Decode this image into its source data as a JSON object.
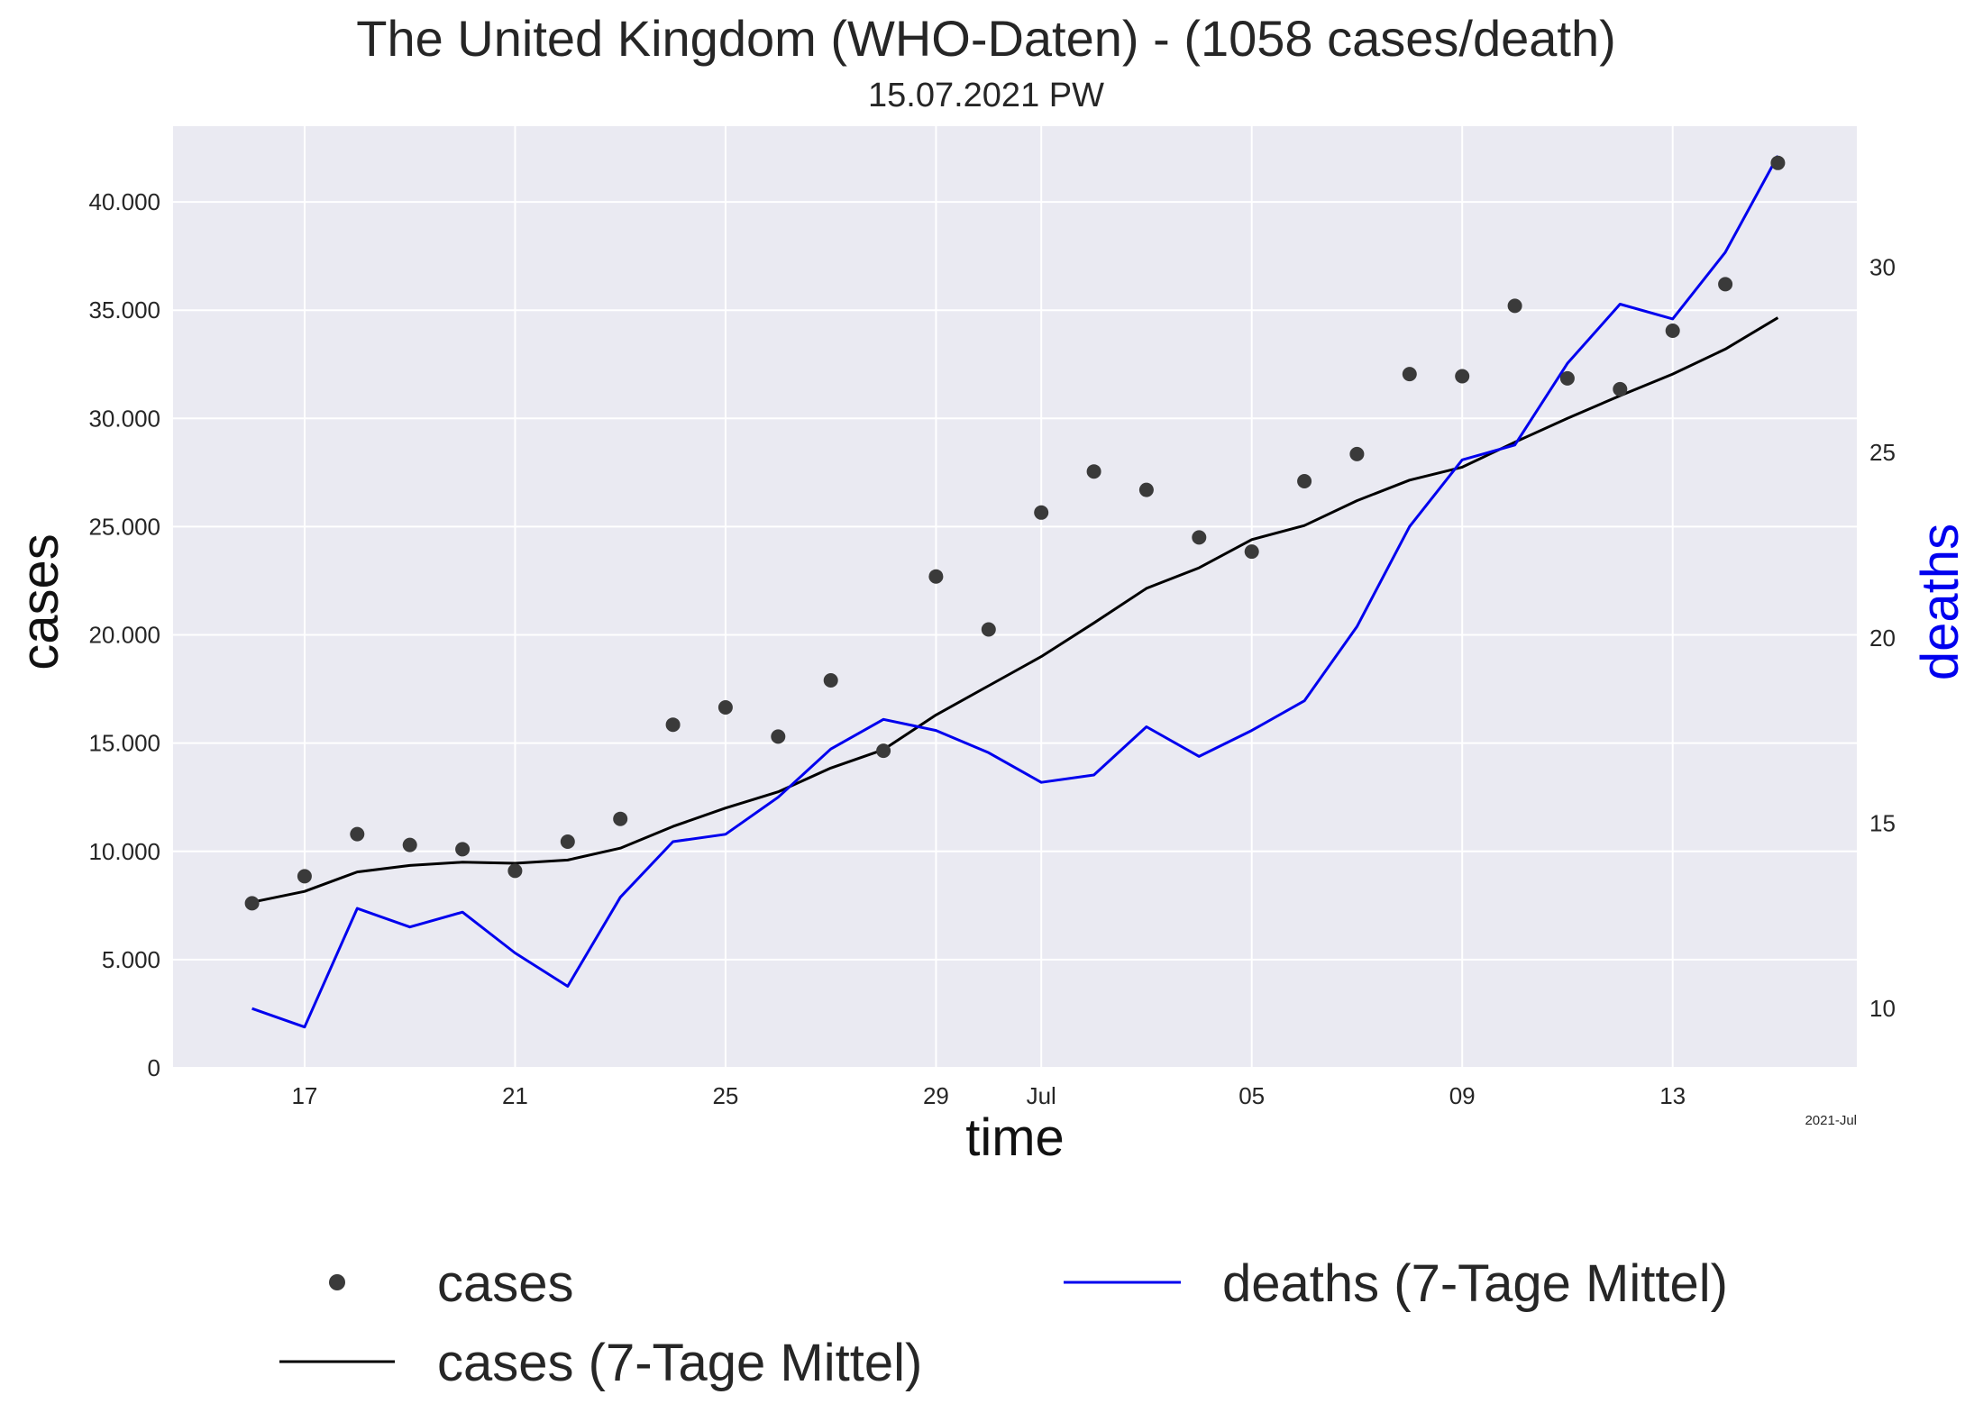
{
  "chart_data": {
    "type": "line",
    "title": "The United Kingdom (WHO-Daten) - (1058 cases/death)",
    "subtitle": "15.07.2021 PW",
    "xlabel": "time",
    "ylabel": "cases",
    "y2label": "deaths",
    "x_offset_label": "2021-Jul",
    "x": [
      "2021-06-16",
      "2021-06-17",
      "2021-06-18",
      "2021-06-19",
      "2021-06-20",
      "2021-06-21",
      "2021-06-22",
      "2021-06-23",
      "2021-06-24",
      "2021-06-25",
      "2021-06-26",
      "2021-06-27",
      "2021-06-28",
      "2021-06-29",
      "2021-06-30",
      "2021-07-01",
      "2021-07-02",
      "2021-07-03",
      "2021-07-04",
      "2021-07-05",
      "2021-07-06",
      "2021-07-07",
      "2021-07-08",
      "2021-07-09",
      "2021-07-10",
      "2021-07-11",
      "2021-07-12",
      "2021-07-13",
      "2021-07-14",
      "2021-07-15"
    ],
    "xlim": [
      "2021-06-14T12:00",
      "2021-07-16T12:00"
    ],
    "x_ticks": [
      {
        "date": "2021-06-17",
        "label": "17"
      },
      {
        "date": "2021-06-21",
        "label": "21"
      },
      {
        "date": "2021-06-25",
        "label": "25"
      },
      {
        "date": "2021-06-29",
        "label": "29"
      },
      {
        "date": "2021-07-01",
        "label": "Jul"
      },
      {
        "date": "2021-07-05",
        "label": "05"
      },
      {
        "date": "2021-07-09",
        "label": "09"
      },
      {
        "date": "2021-07-13",
        "label": "13"
      }
    ],
    "ylim": [
      0,
      43500
    ],
    "y_ticks": [
      {
        "value": 0,
        "label": "0"
      },
      {
        "value": 5000,
        "label": "5.000"
      },
      {
        "value": 10000,
        "label": "10.000"
      },
      {
        "value": 15000,
        "label": "15.000"
      },
      {
        "value": 20000,
        "label": "20.000"
      },
      {
        "value": 25000,
        "label": "25.000"
      },
      {
        "value": 30000,
        "label": "30.000"
      },
      {
        "value": 35000,
        "label": "35.000"
      },
      {
        "value": 40000,
        "label": "40.000"
      }
    ],
    "y2lim": [
      8.4,
      33.8
    ],
    "y2_ticks": [
      {
        "value": 10,
        "label": "10"
      },
      {
        "value": 15,
        "label": "15"
      },
      {
        "value": 20,
        "label": "20"
      },
      {
        "value": 25,
        "label": "25"
      },
      {
        "value": 30,
        "label": "30"
      }
    ],
    "grid": true,
    "legend_placement": "bottom",
    "colors": {
      "background": "#eaeaf2",
      "grid": "#ffffff",
      "cases_points": "#3a3a3a",
      "cases_avg": "#000000",
      "deaths_avg": "#0000ee",
      "y2_label": "#0000ee"
    },
    "series": [
      {
        "name": "cases",
        "kind": "scatter",
        "axis": "left",
        "values": [
          7600,
          8850,
          10800,
          10300,
          10100,
          9100,
          10450,
          11500,
          15850,
          16650,
          15300,
          17900,
          14650,
          22700,
          20250,
          25650,
          27550,
          26700,
          24500,
          23850,
          27100,
          28350,
          32050,
          31950,
          35200,
          31850,
          31350,
          34050,
          36200,
          41800
        ]
      },
      {
        "name": "cases (7-Tage Mittel)",
        "kind": "line",
        "axis": "left",
        "values": [
          7650,
          8150,
          9050,
          9350,
          9500,
          9450,
          9600,
          10150,
          11150,
          12000,
          12750,
          13850,
          14700,
          16300,
          17650,
          19000,
          20550,
          22150,
          23100,
          24400,
          25050,
          26200,
          27150,
          27750,
          28900,
          30000,
          31050,
          32050,
          33200,
          34650
        ]
      },
      {
        "name": "deaths (7-Tage Mittel)",
        "kind": "line",
        "axis": "right",
        "values": [
          10.0,
          9.5,
          12.7,
          12.2,
          12.6,
          11.5,
          10.6,
          13.0,
          14.5,
          14.7,
          15.7,
          17.0,
          17.8,
          17.5,
          16.9,
          16.1,
          16.3,
          17.6,
          16.8,
          17.5,
          18.3,
          20.3,
          23.0,
          24.8,
          25.2,
          27.4,
          29.0,
          28.6,
          30.4,
          33.0
        ]
      }
    ]
  }
}
